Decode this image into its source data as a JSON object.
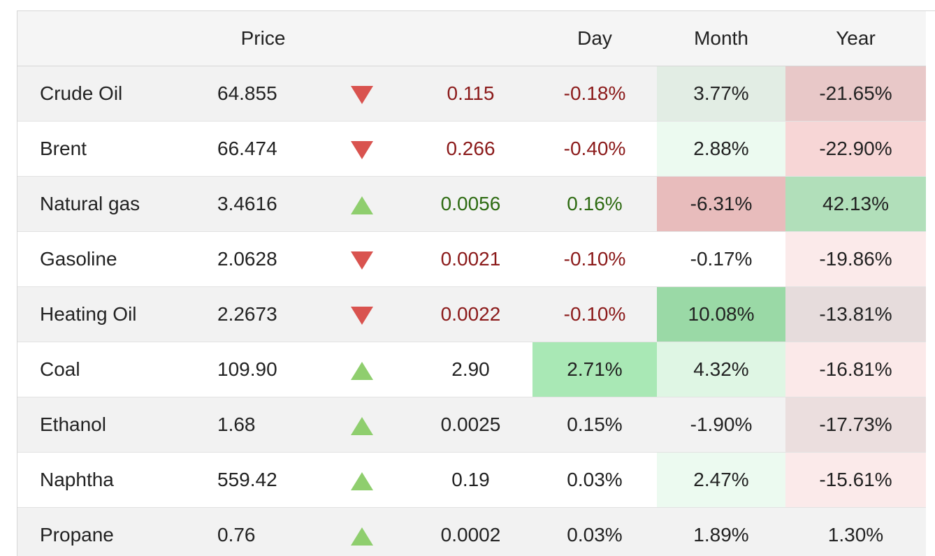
{
  "headers": {
    "name": "",
    "price": "Price",
    "arrow": "",
    "change": "",
    "day": "Day",
    "month": "Month",
    "year": "Year"
  },
  "colors": {
    "neg_text": "#8b1a1a",
    "pos_text": "#2e6b12",
    "down_arrow": "#d9534f",
    "up_arrow": "#8fce6e"
  },
  "rows": [
    {
      "name": "Crude Oil",
      "price": "64.855",
      "direction": "down",
      "change": "0.115",
      "day": "-0.18%",
      "month": "3.77%",
      "year": "-21.65%",
      "change_tone": "neg",
      "month_bg": "#e2ede4",
      "year_bg": "#e8c8c8"
    },
    {
      "name": "Brent",
      "price": "66.474",
      "direction": "down",
      "change": "0.266",
      "day": "-0.40%",
      "month": "2.88%",
      "year": "-22.90%",
      "change_tone": "neg",
      "month_bg": "#ecfaf0",
      "year_bg": "#f7d6d6"
    },
    {
      "name": "Natural gas",
      "price": "3.4616",
      "direction": "up",
      "change": "0.0056",
      "day": "0.16%",
      "month": "-6.31%",
      "year": "42.13%",
      "change_tone": "pos",
      "month_bg": "#e8bcbc",
      "year_bg": "#b1dfba"
    },
    {
      "name": "Gasoline",
      "price": "2.0628",
      "direction": "down",
      "change": "0.0021",
      "day": "-0.10%",
      "month": "-0.17%",
      "year": "-19.86%",
      "change_tone": "neg",
      "month_bg": "",
      "year_bg": "#fbeaea"
    },
    {
      "name": "Heating Oil",
      "price": "2.2673",
      "direction": "down",
      "change": "0.0022",
      "day": "-0.10%",
      "month": "10.08%",
      "year": "-13.81%",
      "change_tone": "neg",
      "month_bg": "#9ad9a6",
      "year_bg": "#e6dcdc"
    },
    {
      "name": "Coal",
      "price": "109.90",
      "direction": "up",
      "change": "2.90",
      "day": "2.71%",
      "month": "4.32%",
      "year": "-16.81%",
      "change_tone": "",
      "day_bg": "#a9e8b5",
      "month_bg": "#dff6e4",
      "year_bg": "#fbe9e9"
    },
    {
      "name": "Ethanol",
      "price": "1.68",
      "direction": "up",
      "change": "0.0025",
      "day": "0.15%",
      "month": "-1.90%",
      "year": "-17.73%",
      "change_tone": "",
      "month_bg": "",
      "year_bg": "#ebdede"
    },
    {
      "name": "Naphtha",
      "price": "559.42",
      "direction": "up",
      "change": "0.19",
      "day": "0.03%",
      "month": "2.47%",
      "year": "-15.61%",
      "change_tone": "",
      "month_bg": "#ecfaf0",
      "year_bg": "#fbeaea"
    },
    {
      "name": "Propane",
      "price": "0.76",
      "direction": "up",
      "change": "0.0002",
      "day": "0.03%",
      "month": "1.89%",
      "year": "1.30%",
      "change_tone": "",
      "month_bg": "",
      "year_bg": ""
    }
  ]
}
